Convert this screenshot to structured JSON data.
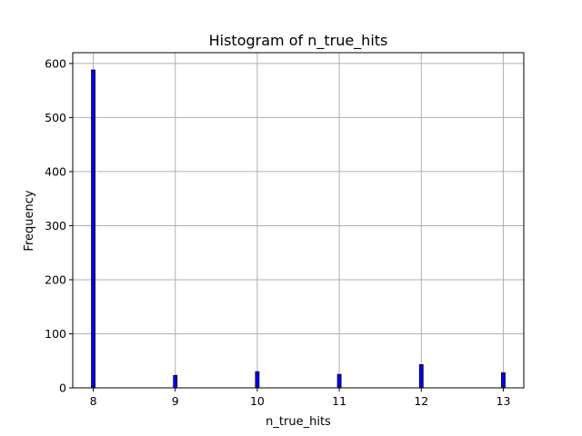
{
  "chart_data": {
    "type": "bar",
    "title": "Histogram of n_true_hits",
    "xlabel": "n_true_hits",
    "ylabel": "Frequency",
    "xlim": [
      7.75,
      13.25
    ],
    "ylim": [
      0,
      620
    ],
    "xticks": [
      "8",
      "9",
      "10",
      "11",
      "12",
      "13"
    ],
    "yticks": [
      "0",
      "100",
      "200",
      "300",
      "400",
      "500",
      "600"
    ],
    "grid": true,
    "bar_color": "#0000ff",
    "edge_color": "#000000",
    "bins": [
      {
        "x": 8,
        "value": 588
      },
      {
        "x": 9,
        "value": 23
      },
      {
        "x": 10,
        "value": 30
      },
      {
        "x": 11,
        "value": 25
      },
      {
        "x": 12,
        "value": 43
      },
      {
        "x": 13,
        "value": 28
      }
    ]
  }
}
